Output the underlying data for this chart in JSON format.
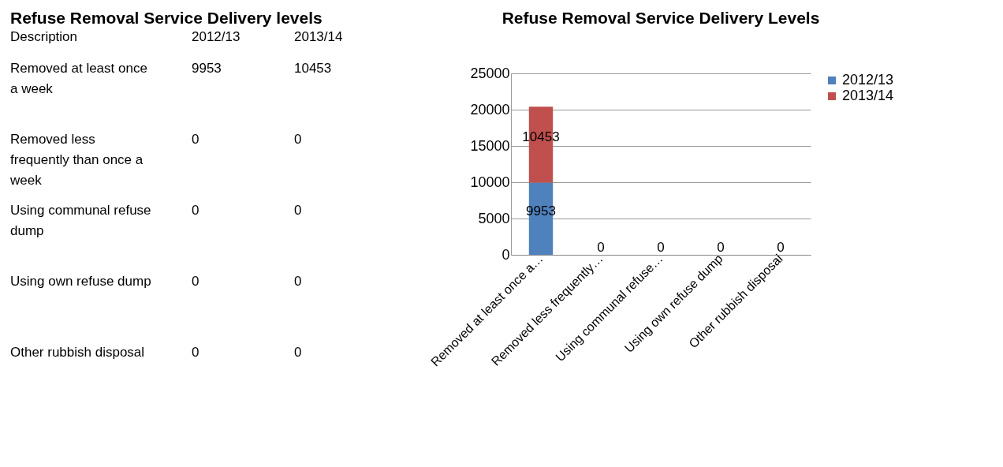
{
  "chart_data": [
    {
      "type": "other",
      "title": "Refuse Removal Service Delivery levels",
      "data_labels": true,
      "xlabel": "Description",
      "categories": [
        "Removed at least once a week",
        "Removed less frequently than once a week",
        "Using communal refuse dump",
        "Using own refuse dump",
        "Other rubbish disposal"
      ],
      "series": [
        {
          "name": "2012/13",
          "values": [
            9953,
            0,
            0,
            0,
            0
          ]
        },
        {
          "name": "2013/14",
          "values": [
            10453,
            0,
            0,
            0,
            0
          ]
        }
      ]
    },
    {
      "type": "bar",
      "title": "Refuse Removal Service Delivery Levels",
      "stacked": true,
      "categories": [
        "Removed at least once a…",
        "Removed less frequently…",
        "Using communal refuse…",
        "Using own refuse dump",
        "Other rubbish disposal"
      ],
      "series": [
        {
          "name": "2012/13",
          "color": "#4f81bd",
          "values": [
            9953,
            0,
            0,
            0,
            0
          ],
          "value_labels": [
            "9953",
            "0",
            "0",
            "0",
            "0"
          ]
        },
        {
          "name": "2013/14",
          "color": "#c0504d",
          "values": [
            10453,
            0,
            0,
            0,
            0
          ],
          "value_labels": [
            "10453",
            null,
            null,
            null,
            null
          ]
        }
      ],
      "ylim": [
        0,
        25000
      ],
      "yticks": [
        0,
        5000,
        10000,
        15000,
        20000,
        25000
      ],
      "grid": "y",
      "legend": "right"
    }
  ]
}
